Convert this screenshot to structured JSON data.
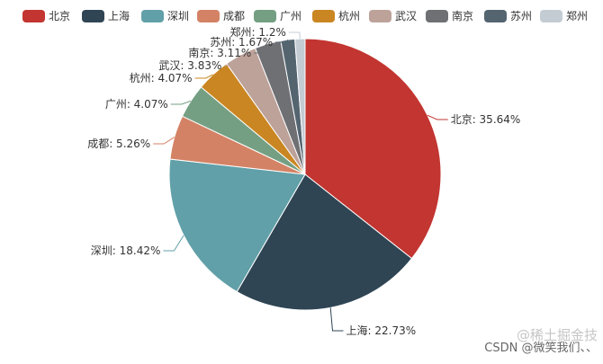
{
  "chart_data": {
    "type": "pie",
    "legend_position": "top",
    "categories": [
      "北京",
      "上海",
      "深圳",
      "成都",
      "广州",
      "杭州",
      "武汉",
      "南京",
      "苏州",
      "郑州"
    ],
    "values": [
      35.64,
      22.73,
      18.42,
      5.26,
      4.07,
      4.07,
      3.83,
      3.11,
      1.67,
      1.2
    ],
    "labels": [
      "北京: 35.64%",
      "上海: 22.73%",
      "深圳: 18.42%",
      "成都: 5.26%",
      "广州: 4.07%",
      "杭州: 4.07%",
      "武汉: 3.83%",
      "南京: 3.11%",
      "苏州: 1.67%",
      "郑州: 1.2%"
    ],
    "colors": [
      "#c23531",
      "#2f4554",
      "#61a0a8",
      "#d48265",
      "#749f83",
      "#ca8622",
      "#bda29a",
      "#6e7074",
      "#546570",
      "#c4ccd3"
    ]
  },
  "watermark": {
    "line1": "@稀土掘金技",
    "line2": "CSDN @微笑我们、、"
  }
}
